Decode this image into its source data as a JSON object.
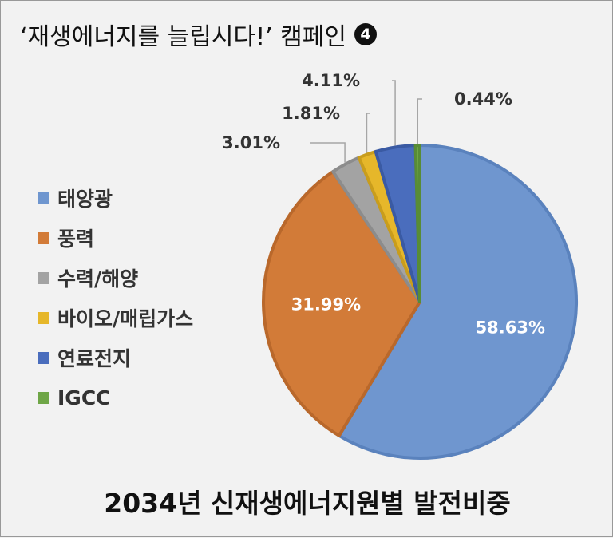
{
  "header": {
    "title": "‘재생에너지를 늘립시다!’ 캠페인",
    "badge": "4"
  },
  "footer": {
    "caption": "2034년 신재생에너지원별 발전비중"
  },
  "chart_data": {
    "type": "pie",
    "title": "2034년 신재생에너지원별 발전비중",
    "legend_position": "left",
    "slices": [
      {
        "name": "태양광",
        "value": 58.63,
        "label": "58.63%",
        "color": "#6f96cf"
      },
      {
        "name": "풍력",
        "value": 31.99,
        "label": "31.99%",
        "color": "#d27b38"
      },
      {
        "name": "수력/해양",
        "value": 3.01,
        "label": "3.01%",
        "color": "#a3a3a3"
      },
      {
        "name": "바이오/매립가스",
        "value": 1.81,
        "label": "1.81%",
        "color": "#e6b72a"
      },
      {
        "name": "연료전지",
        "value": 4.11,
        "label": "4.11%",
        "color": "#4a6dbd"
      },
      {
        "name": "IGCC",
        "value": 0.44,
        "label": "0.44%",
        "color": "#6fa647"
      }
    ]
  }
}
